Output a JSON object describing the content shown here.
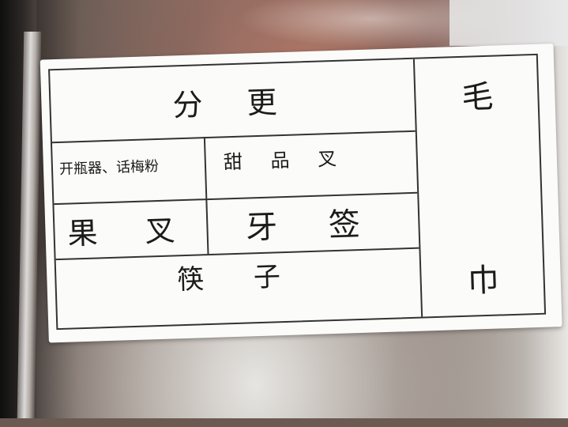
{
  "label": {
    "title": "分 更",
    "cells": {
      "top_left": "开瓶器、话梅粉",
      "top_right": "甜 品 叉",
      "mid_left": "果 叉",
      "mid_right": "牙 签",
      "bottom": "筷 子"
    },
    "side_top": "毛",
    "side_bottom": "巾"
  }
}
